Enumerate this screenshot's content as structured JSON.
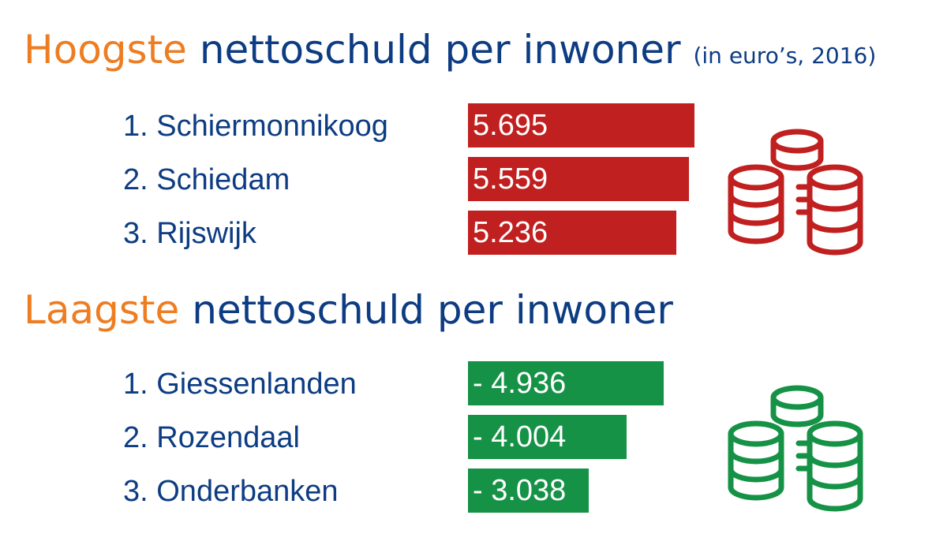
{
  "colors": {
    "accent": "#ee7d22",
    "title": "#0d3c82",
    "high_bar": "#c0201f",
    "low_bar": "#169247"
  },
  "sections": {
    "high": {
      "accent_word": "Hoogste",
      "title_rest": "nettoschuld per inwoner",
      "subtitle": "(in euro’s, 2016)",
      "icon": "coin-stacks-icon"
    },
    "low": {
      "accent_word": "Laagste",
      "title_rest": "nettoschuld per inwoner",
      "icon": "coin-stacks-icon"
    }
  },
  "chart_data": [
    {
      "type": "bar",
      "orientation": "horizontal",
      "title": "Hoogste nettoschuld per inwoner (in euro’s, 2016)",
      "categories": [
        "1. Schiermonnikoog",
        "2. Schiedam",
        "3. Rijswijk"
      ],
      "values": [
        5695,
        5559,
        5236
      ],
      "value_labels": [
        "5.695",
        "5.559",
        "5.236"
      ],
      "xlim": [
        0,
        5695
      ],
      "color": "#c0201f",
      "grid": false
    },
    {
      "type": "bar",
      "orientation": "horizontal",
      "title": "Laagste nettoschuld per inwoner",
      "categories": [
        "1. Giessenlanden",
        "2. Rozendaal",
        "3. Onderbanken"
      ],
      "values": [
        -4936,
        -4004,
        -3038
      ],
      "value_labels": [
        "- 4.936",
        "- 4.004",
        "- 3.038"
      ],
      "color": "#169247",
      "grid": false
    }
  ]
}
